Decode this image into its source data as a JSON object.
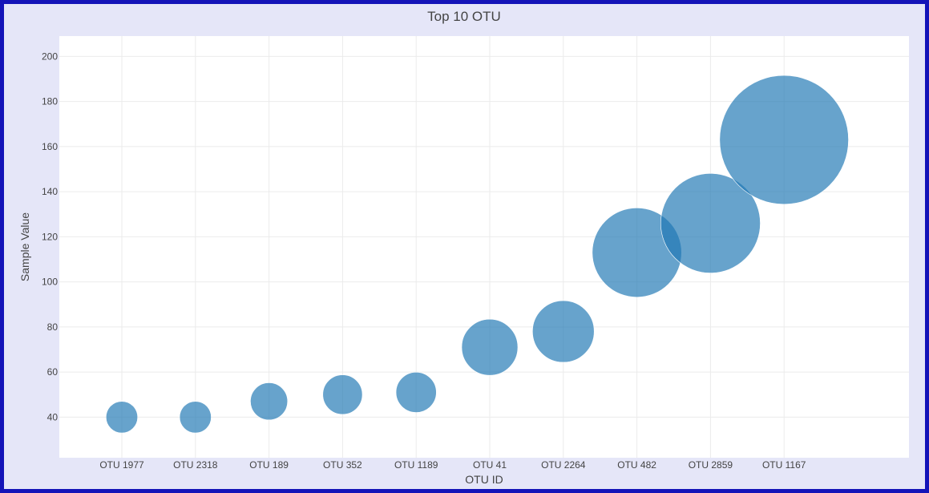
{
  "chart_data": {
    "type": "scatter",
    "title": "Top 10 OTU",
    "xlabel": "OTU ID",
    "ylabel": "Sample Value",
    "categories": [
      "OTU 1977",
      "OTU 2318",
      "OTU 189",
      "OTU 352",
      "OTU 1189",
      "OTU 41",
      "OTU 2264",
      "OTU 482",
      "OTU 2859",
      "OTU 1167"
    ],
    "values": [
      40,
      40,
      47,
      50,
      51,
      71,
      78,
      113,
      126,
      163
    ],
    "yticks": [
      40,
      60,
      80,
      100,
      120,
      140,
      160,
      180,
      200
    ],
    "ylim": [
      22,
      209
    ],
    "marker_size": "proportional to sample value",
    "grid": true,
    "legend": "none",
    "colors": {
      "marker": "#1f77b4",
      "plot_bg": "#ffffff",
      "paper_bg": "#e5e6f8",
      "border": "#1414b8",
      "grid": "#ebebeb"
    }
  }
}
